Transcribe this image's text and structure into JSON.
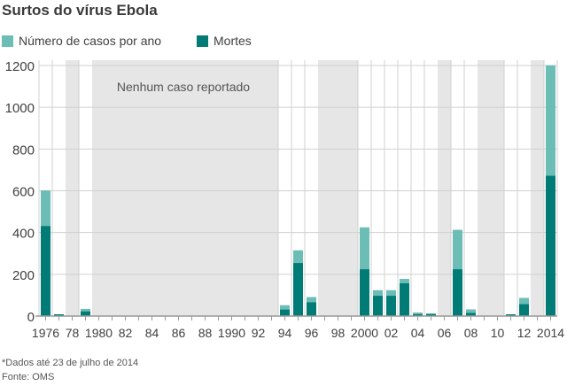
{
  "title": "Surtos do vírus Ebola",
  "footnote": "*Dados até 23 de julho de 2014",
  "source": "Fonte: OMS",
  "chart_data": {
    "type": "bar",
    "stacked": "overlay",
    "title": "Surtos do vírus Ebola",
    "legend": [
      "Número de casos por ano",
      "Mortes"
    ],
    "legend_position": "top-left",
    "colors": {
      "cases": "#6dbdb7",
      "deaths": "#007b75",
      "nocase": "#e6e6e6"
    },
    "annotation": "Nenhum caso reportado",
    "years": [
      1976,
      1977,
      1978,
      1979,
      1980,
      1981,
      1982,
      1983,
      1984,
      1985,
      1986,
      1987,
      1988,
      1989,
      1990,
      1991,
      1992,
      1993,
      1994,
      1995,
      1996,
      1997,
      1998,
      1999,
      2000,
      2001,
      2002,
      2003,
      2004,
      2005,
      2006,
      2007,
      2008,
      2009,
      2010,
      2011,
      2012,
      2013,
      2014
    ],
    "cases": [
      602,
      1,
      0,
      34,
      0,
      0,
      0,
      0,
      0,
      0,
      0,
      0,
      0,
      0,
      0,
      0,
      0,
      0,
      52,
      315,
      91,
      0,
      0,
      0,
      425,
      124,
      124,
      178,
      17,
      12,
      0,
      413,
      32,
      0,
      0,
      1,
      87,
      0,
      1201
    ],
    "deaths": [
      431,
      1,
      0,
      22,
      0,
      0,
      0,
      0,
      0,
      0,
      0,
      0,
      0,
      0,
      0,
      0,
      0,
      0,
      31,
      254,
      66,
      0,
      0,
      0,
      224,
      97,
      97,
      157,
      7,
      10,
      0,
      224,
      15,
      0,
      0,
      1,
      57,
      0,
      672
    ],
    "no_case_years": [
      1978,
      1980,
      1981,
      1982,
      1983,
      1984,
      1985,
      1986,
      1987,
      1988,
      1989,
      1990,
      1991,
      1992,
      1993,
      1997,
      1998,
      1999,
      2006,
      2009,
      2010,
      2013
    ],
    "x_tick_labels": [
      "1976",
      "78",
      "1980",
      "82",
      "84",
      "86",
      "88",
      "1990",
      "92",
      "94",
      "96",
      "98",
      "2000",
      "02",
      "04",
      "06",
      "08",
      "10",
      "12",
      "2014"
    ],
    "y_ticks": [
      0,
      200,
      400,
      600,
      800,
      1000,
      1200
    ],
    "ylim": [
      0,
      1200
    ],
    "grid": true
  }
}
